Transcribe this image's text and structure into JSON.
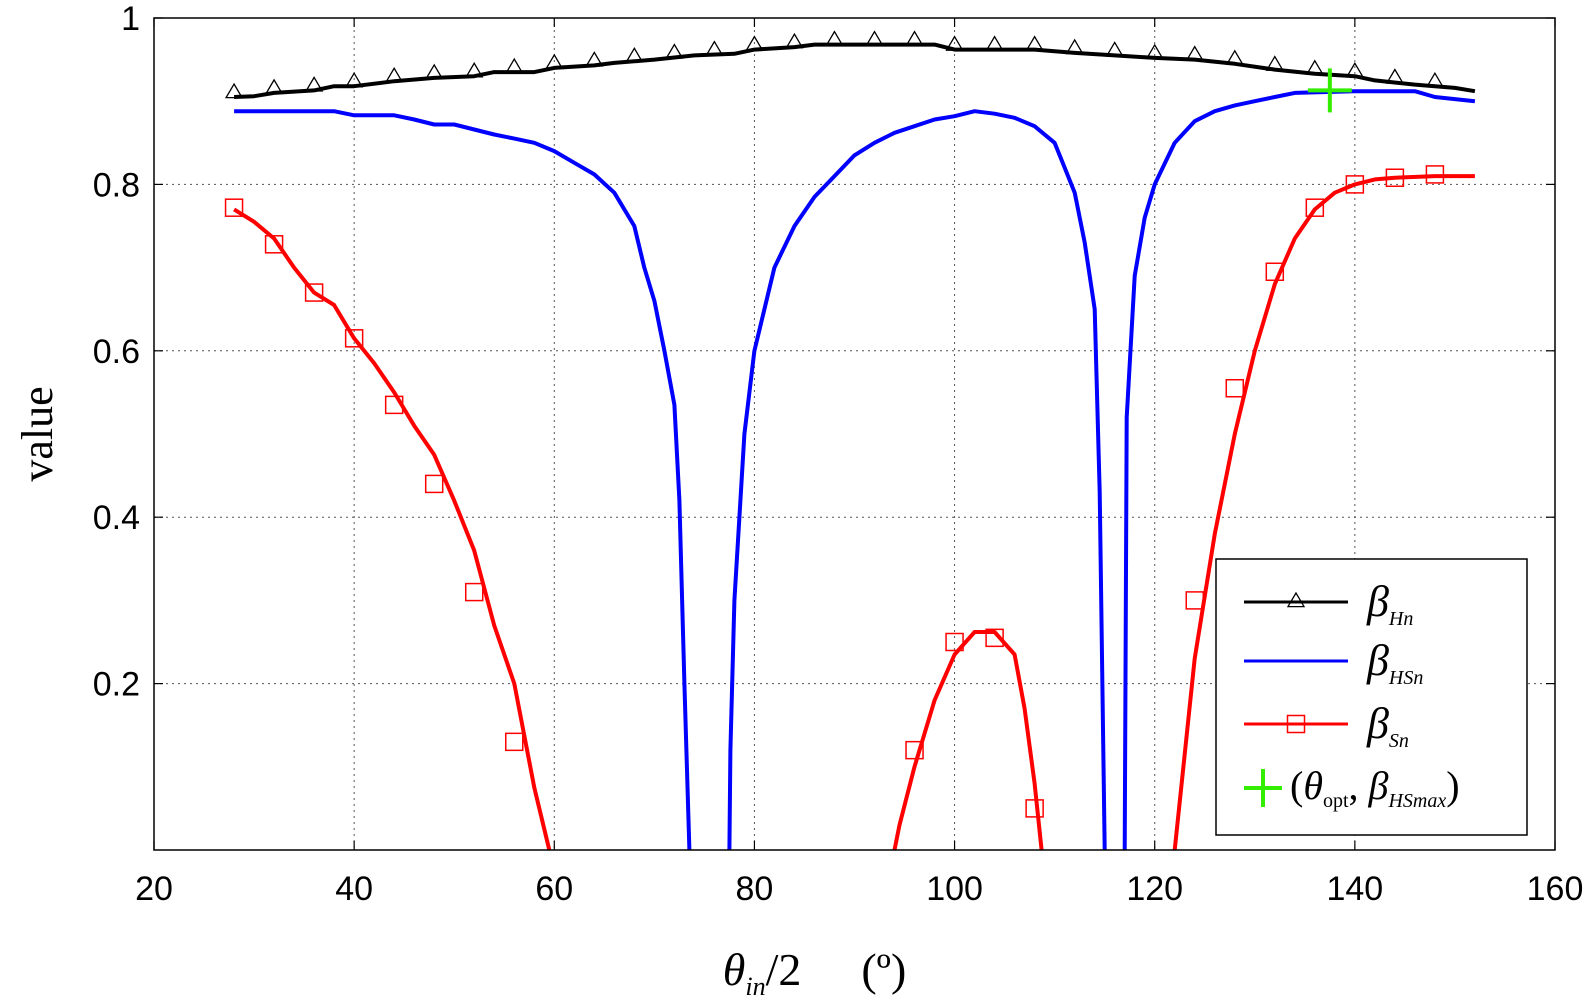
{
  "chart_data": {
    "type": "line",
    "xlabel": {
      "symbol": "θ",
      "sub": "in",
      "rest": "/2",
      "unit": "(º)"
    },
    "ylabel": "value",
    "xlim": [
      20,
      160
    ],
    "ylim": [
      0,
      1
    ],
    "x_ticks": [
      20,
      40,
      60,
      80,
      100,
      120,
      140,
      160
    ],
    "x_tick_labels": [
      "20",
      "40",
      "60",
      "80",
      "100",
      "120",
      "140",
      "160"
    ],
    "y_ticks": [
      0.2,
      0.4,
      0.6,
      0.8,
      1
    ],
    "y_tick_labels": [
      "0.2",
      "0.4",
      "0.6",
      "0.8",
      "1"
    ],
    "grid": true,
    "legend_position": "bottom-right",
    "series": [
      {
        "name": "β_Hn",
        "legend_label": {
          "symbol": "β",
          "sub": "Hn"
        },
        "color": "#000000",
        "marker": "triangle",
        "segments": [
          [
            [
              28,
              0.905
            ],
            [
              30,
              0.906
            ],
            [
              32,
              0.91
            ],
            [
              36,
              0.913
            ],
            [
              38,
              0.918
            ],
            [
              40,
              0.918
            ],
            [
              44,
              0.924
            ],
            [
              48,
              0.928
            ],
            [
              52,
              0.93
            ],
            [
              54,
              0.935
            ],
            [
              58,
              0.935
            ],
            [
              60,
              0.94
            ],
            [
              64,
              0.943
            ],
            [
              66,
              0.946
            ],
            [
              70,
              0.95
            ],
            [
              74,
              0.955
            ],
            [
              78,
              0.957
            ],
            [
              80,
              0.962
            ],
            [
              84,
              0.965
            ],
            [
              86,
              0.968
            ],
            [
              90,
              0.968
            ],
            [
              94,
              0.968
            ],
            [
              98,
              0.968
            ],
            [
              100,
              0.962
            ],
            [
              104,
              0.962
            ],
            [
              108,
              0.962
            ],
            [
              112,
              0.958
            ],
            [
              116,
              0.955
            ],
            [
              120,
              0.952
            ],
            [
              124,
              0.95
            ],
            [
              128,
              0.945
            ],
            [
              132,
              0.938
            ],
            [
              136,
              0.933
            ],
            [
              140,
              0.93
            ],
            [
              142,
              0.925
            ],
            [
              146,
              0.92
            ],
            [
              148,
              0.918
            ],
            [
              150,
              0.916
            ],
            [
              152,
              0.912
            ]
          ]
        ],
        "marker_x": [
          28,
          32,
          36,
          40,
          44,
          48,
          52,
          56,
          60,
          64,
          68,
          72,
          76,
          80,
          84,
          88,
          92,
          96,
          100,
          104,
          108,
          112,
          116,
          120,
          124,
          128,
          132,
          136,
          140,
          144,
          148
        ]
      },
      {
        "name": "β_HSn",
        "legend_label": {
          "symbol": "β",
          "sub": "HSn"
        },
        "color": "#0000ff",
        "marker": "none",
        "segments": [
          [
            [
              28,
              0.888
            ],
            [
              38,
              0.888
            ],
            [
              40,
              0.883
            ],
            [
              44,
              0.883
            ],
            [
              46,
              0.878
            ],
            [
              48,
              0.872
            ],
            [
              50,
              0.872
            ],
            [
              52,
              0.866
            ],
            [
              54,
              0.86
            ],
            [
              56,
              0.855
            ],
            [
              58,
              0.85
            ],
            [
              60,
              0.84
            ],
            [
              62,
              0.826
            ],
            [
              64,
              0.812
            ],
            [
              66,
              0.79
            ],
            [
              68,
              0.75
            ],
            [
              69,
              0.7
            ],
            [
              70,
              0.66
            ],
            [
              71,
              0.6
            ],
            [
              72,
              0.535
            ],
            [
              72.5,
              0.42
            ],
            [
              73,
              0.2
            ],
            [
              73.5,
              0
            ]
          ],
          [
            [
              77.5,
              0
            ],
            [
              77.6,
              0.12
            ],
            [
              78,
              0.3
            ],
            [
              79,
              0.5
            ],
            [
              80,
              0.6
            ],
            [
              82,
              0.7
            ],
            [
              84,
              0.75
            ],
            [
              86,
              0.785
            ],
            [
              88,
              0.81
            ],
            [
              90,
              0.835
            ],
            [
              92,
              0.85
            ],
            [
              94,
              0.862
            ],
            [
              96,
              0.87
            ],
            [
              98,
              0.878
            ],
            [
              100,
              0.882
            ],
            [
              102,
              0.888
            ],
            [
              104,
              0.885
            ],
            [
              106,
              0.88
            ],
            [
              108,
              0.87
            ],
            [
              110,
              0.85
            ],
            [
              111,
              0.82
            ],
            [
              112,
              0.79
            ],
            [
              113,
              0.73
            ],
            [
              114,
              0.65
            ],
            [
              114.5,
              0.43
            ],
            [
              115,
              0
            ]
          ],
          [
            [
              117,
              0
            ],
            [
              117.2,
              0.52
            ],
            [
              118,
              0.69
            ],
            [
              119,
              0.76
            ],
            [
              120,
              0.8
            ],
            [
              122,
              0.85
            ],
            [
              124,
              0.876
            ],
            [
              126,
              0.888
            ],
            [
              128,
              0.895
            ],
            [
              130,
              0.9
            ],
            [
              132,
              0.905
            ],
            [
              134,
              0.91
            ],
            [
              140,
              0.912
            ],
            [
              146,
              0.912
            ],
            [
              148,
              0.905
            ],
            [
              152,
              0.9
            ]
          ]
        ]
      },
      {
        "name": "β_Sn",
        "legend_label": {
          "symbol": "β",
          "sub": "Sn"
        },
        "color": "#ff0000",
        "marker": "square",
        "segments": [
          [
            [
              28,
              0.77
            ],
            [
              30,
              0.755
            ],
            [
              32,
              0.735
            ],
            [
              34,
              0.7
            ],
            [
              36,
              0.67
            ],
            [
              38,
              0.655
            ],
            [
              40,
              0.615
            ],
            [
              42,
              0.585
            ],
            [
              44,
              0.55
            ],
            [
              46,
              0.51
            ],
            [
              48,
              0.475
            ],
            [
              50,
              0.42
            ],
            [
              52,
              0.36
            ],
            [
              54,
              0.27
            ],
            [
              56,
              0.2
            ],
            [
              58,
              0.075
            ],
            [
              59.5,
              0
            ]
          ],
          [
            [
              94,
              0
            ],
            [
              94.5,
              0.03
            ],
            [
              96,
              0.1
            ],
            [
              98,
              0.18
            ],
            [
              100,
              0.235
            ],
            [
              102,
              0.262
            ],
            [
              104,
              0.262
            ],
            [
              106,
              0.235
            ],
            [
              107,
              0.17
            ],
            [
              108,
              0.08
            ],
            [
              108.7,
              0
            ]
          ],
          [
            [
              122,
              0
            ],
            [
              124,
              0.23
            ],
            [
              126,
              0.38
            ],
            [
              128,
              0.5
            ],
            [
              130,
              0.6
            ],
            [
              132,
              0.68
            ],
            [
              134,
              0.735
            ],
            [
              136,
              0.77
            ],
            [
              138,
              0.79
            ],
            [
              140,
              0.8
            ],
            [
              142,
              0.806
            ],
            [
              144,
              0.808
            ],
            [
              148,
              0.81
            ],
            [
              152,
              0.81
            ]
          ]
        ],
        "markers": [
          [
            28,
            0.772
          ],
          [
            32,
            0.728
          ],
          [
            36,
            0.67
          ],
          [
            40,
            0.615
          ],
          [
            44,
            0.535
          ],
          [
            48,
            0.44
          ],
          [
            52,
            0.31
          ],
          [
            56,
            0.13
          ],
          [
            96,
            0.12
          ],
          [
            100,
            0.25
          ],
          [
            104,
            0.255
          ],
          [
            108,
            0.05
          ],
          [
            124,
            0.3
          ],
          [
            128,
            0.555
          ],
          [
            132,
            0.695
          ],
          [
            136,
            0.772
          ],
          [
            140,
            0.8
          ],
          [
            144,
            0.808
          ],
          [
            148,
            0.812
          ]
        ]
      }
    ],
    "optimum_point": {
      "legend_label": {
        "open": "(",
        "sym1": "θ",
        "sub1": "opt",
        "comma": ", ",
        "sym2": "β",
        "sub2": "HSmax",
        "close": ")"
      },
      "color": "#33ee00",
      "marker": "plus",
      "x": 137.5,
      "y": 0.913
    }
  }
}
